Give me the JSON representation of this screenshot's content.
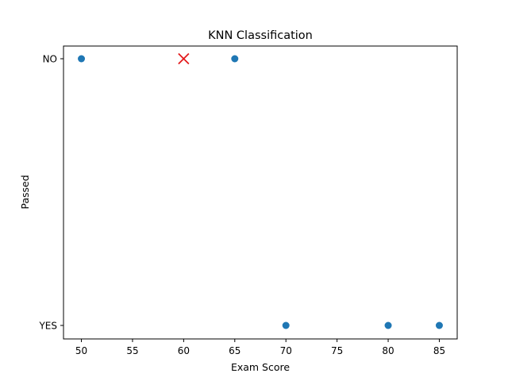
{
  "chart_data": {
    "type": "scatter",
    "title": "KNN Classification",
    "xlabel": "Exam Score",
    "ylabel": "Passed",
    "xlim": [
      48.25,
      86.75
    ],
    "x_ticks": [
      50,
      55,
      60,
      65,
      70,
      75,
      80,
      85
    ],
    "y_categories": [
      "YES",
      "NO"
    ],
    "grid": false,
    "series": [
      {
        "marker": "circle",
        "color": "#1f77b4",
        "points": [
          {
            "x": 50,
            "y": "NO"
          },
          {
            "x": 65,
            "y": "NO"
          },
          {
            "x": 70,
            "y": "YES"
          },
          {
            "x": 80,
            "y": "YES"
          },
          {
            "x": 85,
            "y": "YES"
          }
        ]
      },
      {
        "marker": "x",
        "color": "#e31a1c",
        "points": [
          {
            "x": 60,
            "y": "NO"
          }
        ]
      }
    ]
  }
}
